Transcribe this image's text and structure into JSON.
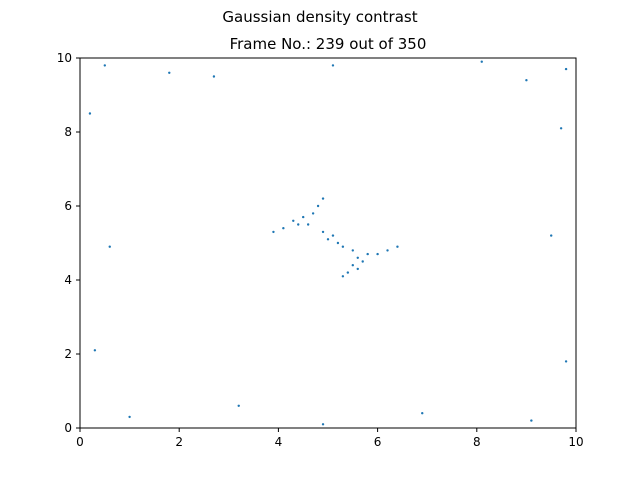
{
  "figure": {
    "suptitle": "Gaussian density contrast",
    "title": "Frame No.: 239 out of 350"
  },
  "chart_data": {
    "type": "scatter",
    "title": "Frame No.: 239 out of 350",
    "suptitle": "Gaussian density contrast",
    "xlabel": "",
    "ylabel": "",
    "xlim": [
      0,
      10
    ],
    "ylim": [
      0,
      10
    ],
    "xticks": [
      0,
      2,
      4,
      6,
      8,
      10
    ],
    "yticks": [
      0,
      2,
      4,
      6,
      8,
      10
    ],
    "xtick_labels": [
      "0",
      "2",
      "4",
      "6",
      "8",
      "10"
    ],
    "ytick_labels": [
      "0",
      "2",
      "4",
      "6",
      "8",
      "10"
    ],
    "grid": false,
    "legend": "none",
    "marker_color": "#1f77b4",
    "series": [
      {
        "points": [
          [
            4.3,
            5.6
          ],
          [
            4.5,
            5.7
          ],
          [
            4.7,
            5.8
          ],
          [
            4.8,
            6.0
          ],
          [
            4.9,
            6.2
          ],
          [
            4.6,
            5.5
          ],
          [
            4.4,
            5.5
          ],
          [
            4.1,
            5.4
          ],
          [
            3.9,
            5.3
          ],
          [
            5.3,
            4.9
          ],
          [
            5.5,
            4.8
          ],
          [
            5.6,
            4.6
          ],
          [
            5.7,
            4.5
          ],
          [
            5.5,
            4.4
          ],
          [
            5.4,
            4.2
          ],
          [
            5.8,
            4.7
          ],
          [
            6.0,
            4.7
          ],
          [
            6.2,
            4.8
          ],
          [
            6.4,
            4.9
          ],
          [
            5.0,
            5.1
          ],
          [
            5.2,
            5.0
          ],
          [
            4.9,
            5.3
          ],
          [
            5.1,
            5.2
          ],
          [
            5.6,
            4.3
          ],
          [
            5.3,
            4.1
          ],
          [
            0.5,
            9.8
          ],
          [
            1.8,
            9.6
          ],
          [
            2.7,
            9.5
          ],
          [
            8.1,
            9.9
          ],
          [
            9.0,
            9.4
          ],
          [
            9.8,
            9.7
          ],
          [
            0.2,
            8.5
          ],
          [
            9.7,
            8.1
          ],
          [
            1.0,
            0.3
          ],
          [
            3.2,
            0.6
          ],
          [
            6.9,
            0.4
          ],
          [
            9.1,
            0.2
          ],
          [
            0.3,
            2.1
          ],
          [
            9.8,
            1.8
          ],
          [
            0.6,
            4.9
          ],
          [
            9.5,
            5.2
          ],
          [
            5.1,
            9.8
          ],
          [
            4.9,
            0.1
          ]
        ]
      }
    ]
  }
}
